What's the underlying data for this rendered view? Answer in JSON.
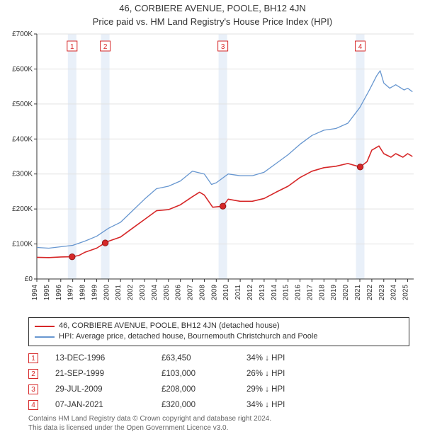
{
  "titles": {
    "line1": "46, CORBIERE AVENUE, POOLE, BH12 4JN",
    "line2": "Price paid vs. HM Land Registry's House Price Index (HPI)"
  },
  "chart": {
    "type": "line",
    "plot_bg": "#ffffff",
    "grid_color": "#e2e2e2",
    "axis_color": "#333333",
    "xlim": [
      1994,
      2025.5
    ],
    "ylim": [
      0,
      700
    ],
    "x_ticks": [
      1994,
      1995,
      1996,
      1997,
      1998,
      1999,
      2000,
      2001,
      2002,
      2003,
      2004,
      2005,
      2006,
      2007,
      2008,
      2009,
      2010,
      2011,
      2012,
      2013,
      2014,
      2015,
      2016,
      2017,
      2018,
      2019,
      2020,
      2021,
      2022,
      2023,
      2024,
      2025
    ],
    "y_ticks": [
      0,
      100,
      200,
      300,
      400,
      500,
      600,
      700
    ],
    "y_tick_labels": [
      "£0",
      "£100K",
      "£200K",
      "£300K",
      "£400K",
      "£500K",
      "£600K",
      "£700K"
    ],
    "series": [
      {
        "name": "hpi",
        "color": "#6897d0",
        "width": 1.3,
        "points": [
          [
            1994,
            90
          ],
          [
            1995,
            88
          ],
          [
            1996,
            92
          ],
          [
            1997,
            96
          ],
          [
            1998,
            108
          ],
          [
            1999,
            122
          ],
          [
            2000,
            145
          ],
          [
            2001,
            162
          ],
          [
            2002,
            195
          ],
          [
            2003,
            228
          ],
          [
            2004,
            258
          ],
          [
            2005,
            265
          ],
          [
            2006,
            280
          ],
          [
            2007,
            308
          ],
          [
            2008,
            300
          ],
          [
            2008.6,
            270
          ],
          [
            2009,
            275
          ],
          [
            2010,
            300
          ],
          [
            2011,
            295
          ],
          [
            2012,
            295
          ],
          [
            2013,
            305
          ],
          [
            2014,
            330
          ],
          [
            2015,
            355
          ],
          [
            2016,
            385
          ],
          [
            2017,
            410
          ],
          [
            2018,
            425
          ],
          [
            2019,
            430
          ],
          [
            2020,
            445
          ],
          [
            2021,
            490
          ],
          [
            2021.8,
            540
          ],
          [
            2022.4,
            580
          ],
          [
            2022.7,
            595
          ],
          [
            2023,
            560
          ],
          [
            2023.5,
            545
          ],
          [
            2024,
            555
          ],
          [
            2024.7,
            540
          ],
          [
            2025,
            545
          ],
          [
            2025.4,
            535
          ]
        ]
      },
      {
        "name": "property",
        "color": "#d62728",
        "width": 1.6,
        "points": [
          [
            1994,
            62
          ],
          [
            1995,
            61
          ],
          [
            1996,
            63
          ],
          [
            1996.95,
            63.45
          ],
          [
            1997.5,
            67
          ],
          [
            1998,
            76
          ],
          [
            1999,
            88
          ],
          [
            1999.7,
            103
          ],
          [
            2000,
            108
          ],
          [
            2001,
            120
          ],
          [
            2002,
            145
          ],
          [
            2003,
            170
          ],
          [
            2004,
            195
          ],
          [
            2005,
            198
          ],
          [
            2006,
            212
          ],
          [
            2007,
            235
          ],
          [
            2007.6,
            248
          ],
          [
            2008,
            240
          ],
          [
            2008.7,
            205
          ],
          [
            2009.55,
            208
          ],
          [
            2010,
            228
          ],
          [
            2011,
            222
          ],
          [
            2012,
            222
          ],
          [
            2013,
            230
          ],
          [
            2014,
            248
          ],
          [
            2015,
            265
          ],
          [
            2016,
            290
          ],
          [
            2017,
            308
          ],
          [
            2018,
            318
          ],
          [
            2019,
            322
          ],
          [
            2020,
            330
          ],
          [
            2021.03,
            320
          ],
          [
            2021.6,
            335
          ],
          [
            2022,
            368
          ],
          [
            2022.6,
            380
          ],
          [
            2023,
            358
          ],
          [
            2023.6,
            348
          ],
          [
            2024,
            358
          ],
          [
            2024.6,
            348
          ],
          [
            2025,
            358
          ],
          [
            2025.4,
            350
          ]
        ]
      }
    ],
    "sale_markers": [
      {
        "n": "1",
        "x": 1996.95,
        "y": 63.45,
        "label_y": 620
      },
      {
        "n": "2",
        "x": 1999.72,
        "y": 103,
        "label_y": 620
      },
      {
        "n": "3",
        "x": 2009.55,
        "y": 208,
        "label_y": 620
      },
      {
        "n": "4",
        "x": 2021.03,
        "y": 320,
        "label_y": 620
      }
    ],
    "marker_box_stroke": "#d62728",
    "marker_highlight_fill": "#d7e3f4",
    "marker_highlight_opacity": 0.55,
    "marker_dot_fill": "#d62728",
    "marker_dot_stroke": "#8f1a1a"
  },
  "legend": {
    "items": [
      {
        "color": "#d62728",
        "width": 2,
        "label": "46, CORBIERE AVENUE, POOLE, BH12 4JN (detached house)"
      },
      {
        "color": "#6897d0",
        "width": 1.3,
        "label": "HPI: Average price, detached house, Bournemouth Christchurch and Poole"
      }
    ]
  },
  "sales_table": {
    "rows": [
      {
        "n": "1",
        "date": "13-DEC-1996",
        "price": "£63,450",
        "delta": "34% ↓ HPI"
      },
      {
        "n": "2",
        "date": "21-SEP-1999",
        "price": "£103,000",
        "delta": "26% ↓ HPI"
      },
      {
        "n": "3",
        "date": "29-JUL-2009",
        "price": "£208,000",
        "delta": "29% ↓ HPI"
      },
      {
        "n": "4",
        "date": "07-JAN-2021",
        "price": "£320,000",
        "delta": "34% ↓ HPI"
      }
    ]
  },
  "footer": {
    "line1": "Contains HM Land Registry data © Crown copyright and database right 2024.",
    "line2": "This data is licensed under the Open Government Licence v3.0."
  }
}
